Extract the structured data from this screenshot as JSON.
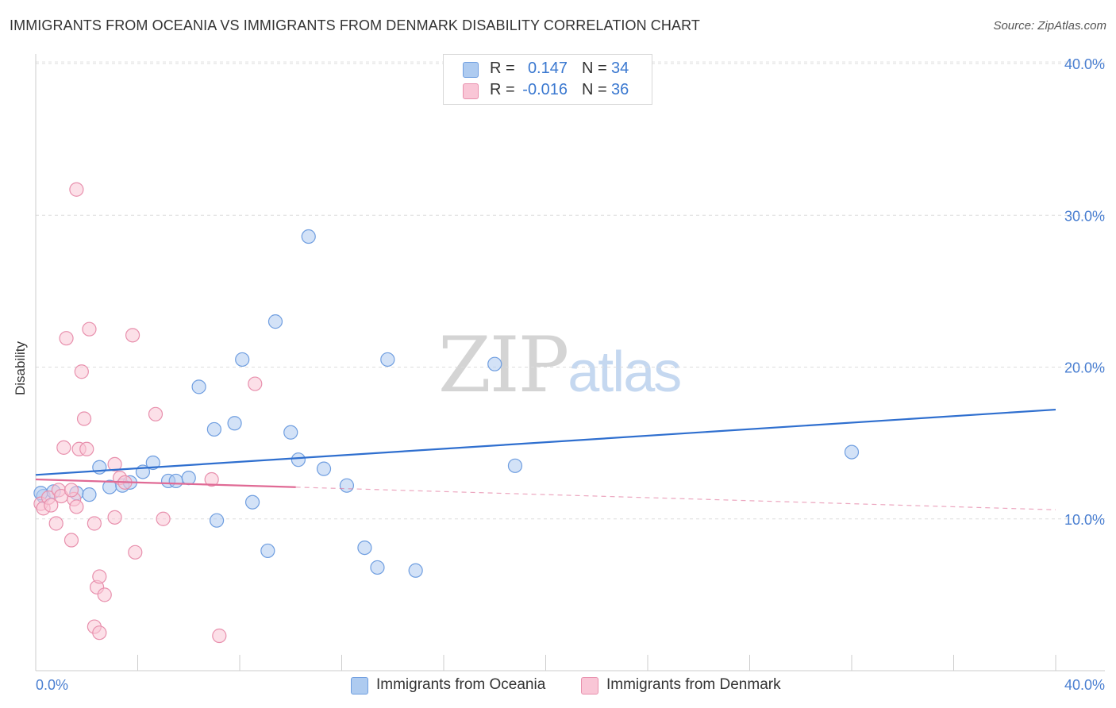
{
  "title": "IMMIGRANTS FROM OCEANIA VS IMMIGRANTS FROM DENMARK DISABILITY CORRELATION CHART",
  "source": "Source: ZipAtlas.com",
  "watermark": {
    "zip": "ZIP",
    "atlas": "atlas"
  },
  "legend": {
    "rows": [
      {
        "r_label": "R =",
        "r_value": "0.147",
        "n_label": "N =",
        "n_value": "34",
        "color": "#aecbf0",
        "stroke": "#6f9ee0"
      },
      {
        "r_label": "R =",
        "r_value": "-0.016",
        "n_label": "N =",
        "n_value": "36",
        "color": "#f9c6d6",
        "stroke": "#e890ad"
      }
    ]
  },
  "bottom_legend": [
    {
      "label": "Immigrants from Oceania",
      "color": "#aecbf0",
      "stroke": "#6f9ee0"
    },
    {
      "label": "Immigrants from Denmark",
      "color": "#f9c6d6",
      "stroke": "#e890ad"
    }
  ],
  "chart_data": {
    "type": "scatter",
    "title": "IMMIGRANTS FROM OCEANIA VS IMMIGRANTS FROM DENMARK DISABILITY CORRELATION CHART",
    "xlabel": "",
    "ylabel": "Disability",
    "xlim": [
      0,
      40
    ],
    "ylim": [
      0,
      40
    ],
    "x_tick_labels": [
      {
        "value": 0,
        "label": "0.0%"
      },
      {
        "value": 40,
        "label": "40.0%"
      }
    ],
    "y_tick_labels": [
      {
        "value": 10,
        "label": "10.0%"
      },
      {
        "value": 20,
        "label": "20.0%"
      },
      {
        "value": 30,
        "label": "30.0%"
      },
      {
        "value": 40,
        "label": "40.0%"
      }
    ],
    "grid": true,
    "series": [
      {
        "name": "Immigrants from Oceania",
        "color": "#6f9ee0",
        "fill": "#aecbf0",
        "trend": {
          "x0": 0,
          "y0": 12.9,
          "x1": 40,
          "y1": 17.2,
          "solid_to": 40,
          "color": "#2f6fcf"
        },
        "points": [
          [
            0.3,
            11.5
          ],
          [
            0.7,
            11.8
          ],
          [
            1.6,
            11.7
          ],
          [
            2.1,
            11.6
          ],
          [
            2.5,
            13.4
          ],
          [
            2.9,
            12.1
          ],
          [
            3.4,
            12.2
          ],
          [
            3.7,
            12.4
          ],
          [
            4.2,
            13.1
          ],
          [
            4.6,
            13.7
          ],
          [
            5.2,
            12.5
          ],
          [
            5.5,
            12.5
          ],
          [
            6.0,
            12.7
          ],
          [
            6.4,
            18.7
          ],
          [
            7.0,
            15.9
          ],
          [
            7.1,
            9.9
          ],
          [
            7.8,
            16.3
          ],
          [
            8.1,
            20.5
          ],
          [
            8.5,
            11.1
          ],
          [
            9.1,
            7.9
          ],
          [
            9.4,
            23.0
          ],
          [
            10.0,
            15.7
          ],
          [
            10.3,
            13.9
          ],
          [
            10.7,
            28.6
          ],
          [
            11.3,
            13.3
          ],
          [
            12.2,
            12.2
          ],
          [
            12.9,
            8.1
          ],
          [
            13.4,
            6.8
          ],
          [
            13.8,
            20.5
          ],
          [
            14.9,
            6.6
          ],
          [
            18.0,
            20.2
          ],
          [
            18.8,
            13.5
          ],
          [
            32.0,
            14.4
          ],
          [
            0.2,
            11.7
          ]
        ]
      },
      {
        "name": "Immigrants from Denmark",
        "color": "#e890ad",
        "fill": "#f9c6d6",
        "trend": {
          "x0": 0,
          "y0": 12.6,
          "x1": 40,
          "y1": 10.6,
          "solid_to": 10.2,
          "color": "#e06a95"
        },
        "points": [
          [
            0.2,
            11.0
          ],
          [
            0.3,
            10.7
          ],
          [
            0.5,
            11.4
          ],
          [
            0.6,
            10.9
          ],
          [
            0.8,
            9.7
          ],
          [
            0.9,
            11.9
          ],
          [
            1.0,
            11.5
          ],
          [
            1.1,
            14.7
          ],
          [
            1.2,
            21.9
          ],
          [
            1.4,
            8.6
          ],
          [
            1.5,
            11.3
          ],
          [
            1.4,
            11.9
          ],
          [
            1.6,
            10.8
          ],
          [
            1.7,
            14.6
          ],
          [
            1.8,
            19.7
          ],
          [
            1.9,
            16.6
          ],
          [
            1.6,
            31.7
          ],
          [
            2.0,
            14.6
          ],
          [
            2.3,
            2.9
          ],
          [
            2.1,
            22.5
          ],
          [
            2.4,
            5.5
          ],
          [
            2.3,
            9.7
          ],
          [
            2.5,
            2.5
          ],
          [
            2.5,
            6.2
          ],
          [
            2.7,
            5.0
          ],
          [
            3.1,
            13.6
          ],
          [
            3.1,
            10.1
          ],
          [
            3.3,
            12.7
          ],
          [
            3.5,
            12.4
          ],
          [
            3.8,
            22.1
          ],
          [
            3.9,
            7.8
          ],
          [
            4.7,
            16.9
          ],
          [
            5.0,
            10.0
          ],
          [
            6.9,
            12.6
          ],
          [
            7.2,
            2.3
          ],
          [
            8.6,
            18.9
          ]
        ]
      }
    ]
  }
}
